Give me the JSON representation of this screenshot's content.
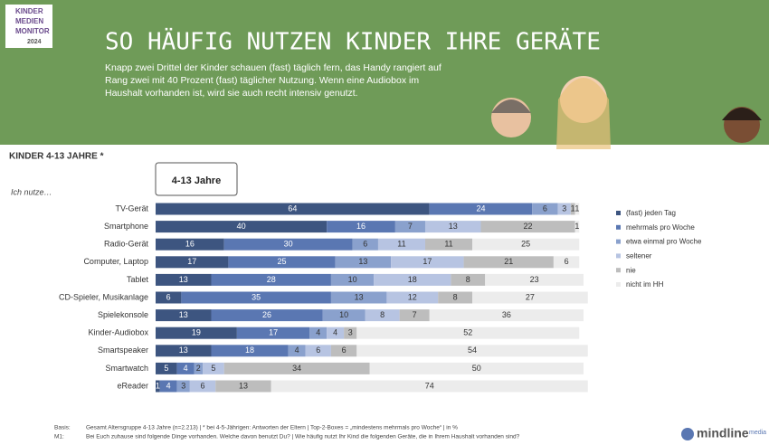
{
  "header": {
    "logo_lines": [
      "KINDER",
      "MEDIEN",
      "MONITOR",
      "2024"
    ],
    "title": "SO HÄUFIG NUTZEN KINDER IHRE GERÄTE",
    "text": "Knapp zwei Drittel der Kinder schauen (fast) täglich fern, das Handy rangiert auf Rang zwei mit 40 Prozent (fast) täglicher Nutzung. Wenn eine Audiobox im Haushalt vorhanden ist, wird sie auch recht intensiv genutzt."
  },
  "chart_data": {
    "type": "stacked-hbar",
    "subtitle": "KINDER 4-13 JAHRE *",
    "tab": "4-13 Jahre",
    "y_label": "Ich nutze…",
    "xlim": [
      0,
      100
    ],
    "categories": [
      "TV-Gerät",
      "Smartphone",
      "Radio-Gerät",
      "Computer, Laptop",
      "Tablet",
      "CD-Spieler, Musikanlage",
      "Spielekonsole",
      "Kinder-Audiobox",
      "Smartspeaker",
      "Smartwatch",
      "eReader"
    ],
    "series": [
      {
        "name": "(fast) jeden Tag",
        "color": "#3d5580",
        "values": [
          64,
          40,
          16,
          17,
          13,
          6,
          13,
          19,
          13,
          5,
          1
        ]
      },
      {
        "name": "mehrmals pro Woche",
        "color": "#5a77b2",
        "values": [
          24,
          16,
          30,
          25,
          28,
          35,
          26,
          17,
          18,
          4,
          4
        ]
      },
      {
        "name": "etwa einmal pro Woche",
        "color": "#8aa1cd",
        "values": [
          6,
          7,
          6,
          13,
          10,
          13,
          10,
          4,
          4,
          2,
          3
        ]
      },
      {
        "name": "seltener",
        "color": "#b7c4e2",
        "values": [
          3,
          13,
          11,
          17,
          18,
          12,
          8,
          4,
          6,
          5,
          6
        ]
      },
      {
        "name": "nie",
        "color": "#bdbdbd",
        "values": [
          1,
          22,
          11,
          21,
          8,
          8,
          7,
          3,
          6,
          34,
          13
        ]
      },
      {
        "name": "nicht im HH",
        "color": "#ececec",
        "values": [
          1,
          1,
          25,
          6,
          23,
          27,
          36,
          52,
          54,
          50,
          74
        ]
      }
    ]
  },
  "footer": {
    "basis_label": "Basis:",
    "basis_text": "Gesamt Altersgruppe 4-13 Jahre (n=2.213) | * bei 4-5-Jährigen: Antworten der Eltern | Top-2-Boxes = „mindestens mehrmals pro Woche“ | in %",
    "m1_label": "M1:",
    "m1_text": "Bei Euch zuhause sind folgende Dinge vorhanden. Welche davon benutzt Du? | Wie häufig nutzt Ihr Kind die folgenden Geräte, die in Ihrem Haushalt vorhanden sind?",
    "brand": "mindline",
    "brand_sub": "media"
  }
}
